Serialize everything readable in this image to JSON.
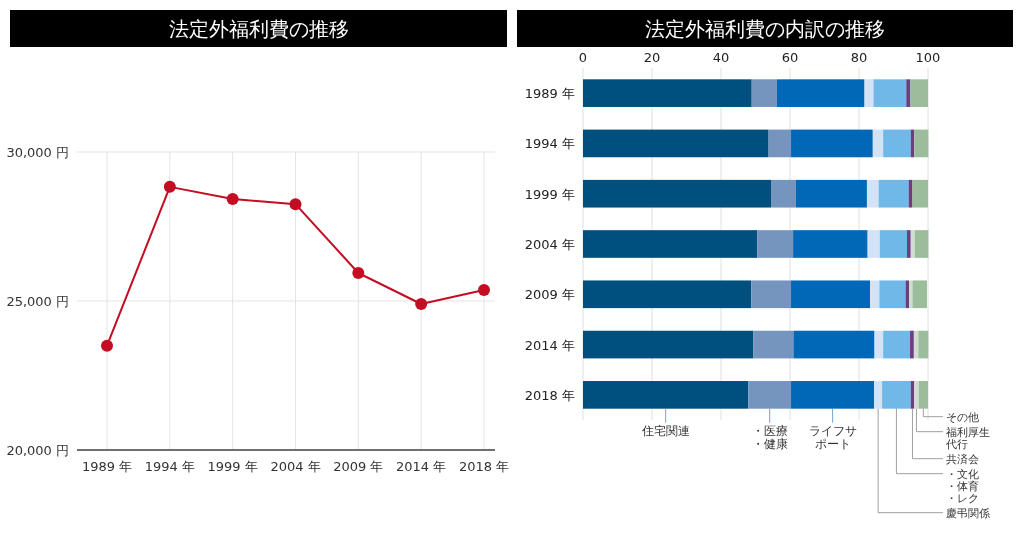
{
  "chart_data": [
    {
      "type": "line",
      "title": "法定外福利費の推移",
      "categories": [
        "1989 年",
        "1994 年",
        "1999 年",
        "2004 年",
        "2009 年",
        "2014 年",
        "2018 年"
      ],
      "series": [
        {
          "color": "#c30d23",
          "values": [
            23500,
            28830,
            28420,
            28250,
            25940,
            24900,
            25370
          ]
        }
      ],
      "ylim": [
        20000,
        30000
      ],
      "yticks": [
        {
          "value": 20000,
          "label": "20,000 円"
        },
        {
          "value": 25000,
          "label": "25,000 円"
        },
        {
          "value": 30000,
          "label": "30,000 円"
        }
      ],
      "grid": true,
      "marker": "circle",
      "line_style": "solid"
    },
    {
      "type": "bar",
      "orientation": "horizontal",
      "stacked": true,
      "title": "法定外福利費の内訳の推移",
      "categories": [
        "1989 年",
        "1994 年",
        "1999 年",
        "2004 年",
        "2009 年",
        "2014 年",
        "2018 年"
      ],
      "series": [
        {
          "name": "住宅関連",
          "color": "#00507f",
          "values": [
            48.9,
            53.8,
            54.5,
            50.5,
            48.8,
            49.4,
            47.9
          ]
        },
        {
          "name": "・医療・健康",
          "color": "#7595bf",
          "values": [
            7.3,
            6.5,
            7.2,
            10.4,
            11.5,
            11.6,
            12.4
          ]
        },
        {
          "name": "ライフサポート",
          "color": "#0068b6",
          "values": [
            25.4,
            23.7,
            20.6,
            21.6,
            22.9,
            23.5,
            24.1
          ]
        },
        {
          "name": "慶弔関係",
          "color": "#d3e3f5",
          "values": [
            2.6,
            3.0,
            3.4,
            3.5,
            2.7,
            2.5,
            2.3
          ]
        },
        {
          "name": "・文化・体育・レク",
          "color": "#70b8e8",
          "values": [
            9.5,
            8.0,
            8.7,
            7.9,
            7.6,
            7.8,
            8.3
          ]
        },
        {
          "name": "共済会",
          "color": "#6a3f7e",
          "values": [
            1.2,
            1.0,
            1.1,
            1.1,
            1.0,
            1.1,
            1.0
          ]
        },
        {
          "name": "福利厚生代行",
          "color": "#cfdccf",
          "values": [
            0,
            0,
            0,
            1.2,
            1.0,
            1.3,
            1.3
          ]
        },
        {
          "name": "その他",
          "color": "#9bbd9b",
          "values": [
            5.1,
            4.1,
            4.5,
            3.9,
            4.2,
            2.9,
            2.7
          ]
        }
      ],
      "xlim": [
        0,
        100
      ],
      "xticks": [
        0,
        20,
        40,
        60,
        80,
        100
      ],
      "grid": "x"
    }
  ]
}
